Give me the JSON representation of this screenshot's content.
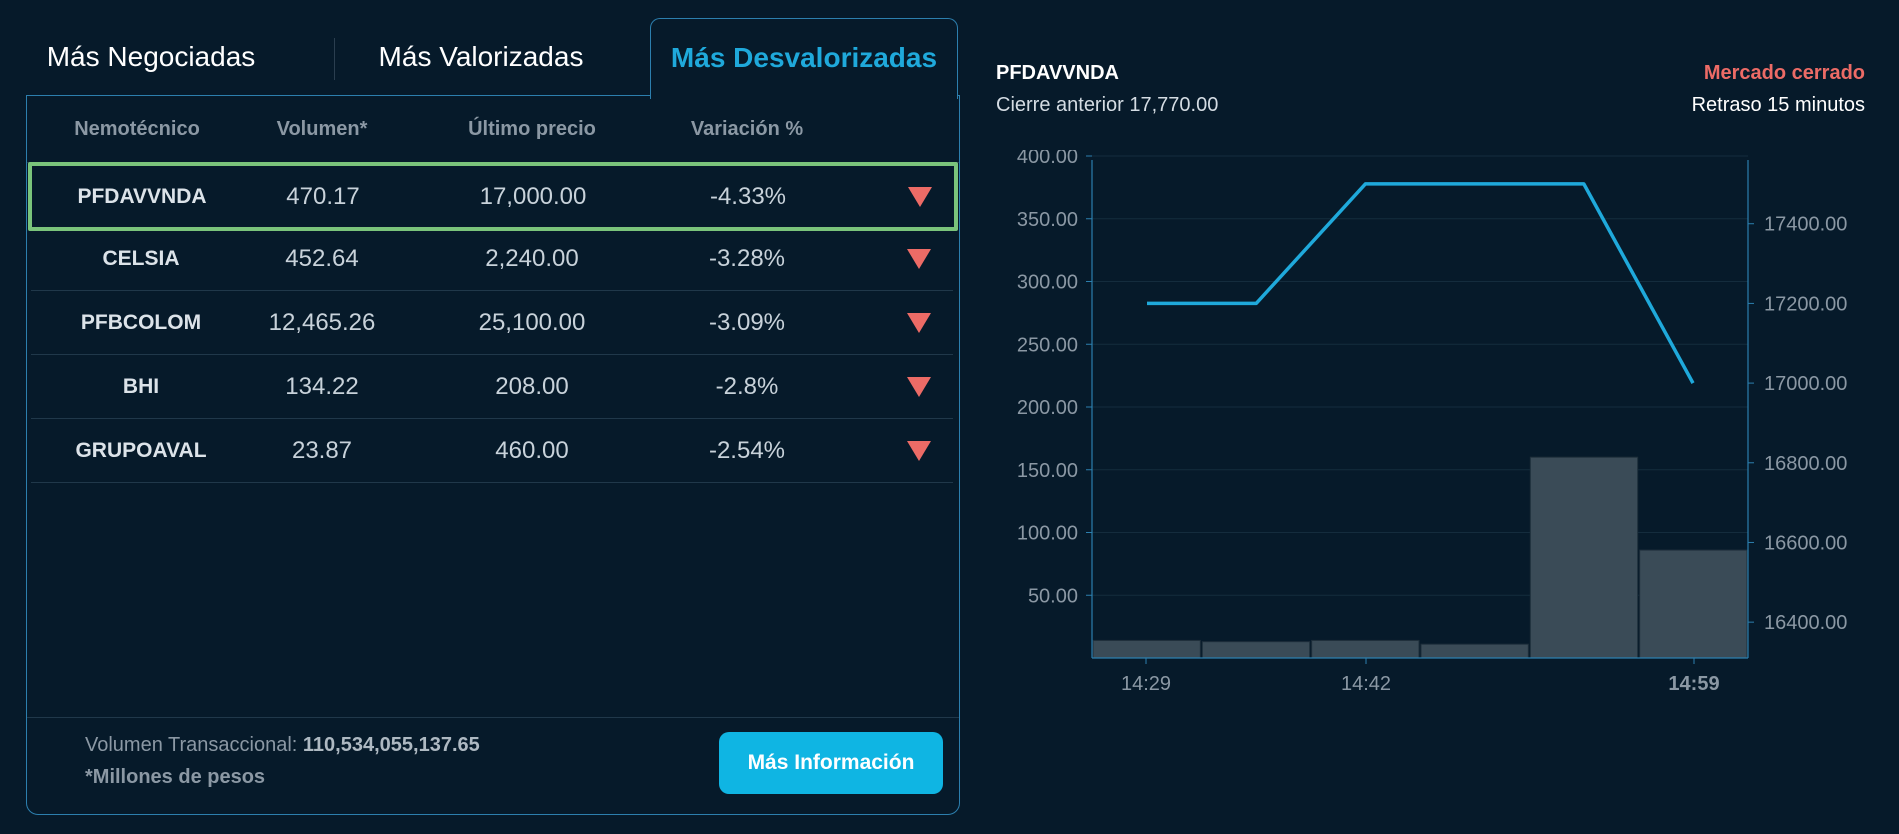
{
  "tabs": [
    "Más Negociadas",
    "Más Valorizadas",
    "Más Desvalorizadas"
  ],
  "active_tab": 2,
  "table": {
    "headers": [
      "Nemotécnico",
      "Volumen*",
      "Último precio",
      "Variación %"
    ],
    "rows": [
      {
        "nemo": "PFDAVVNDA",
        "volumen": "470.17",
        "precio": "17,000.00",
        "variacion": "-4.33%",
        "direction": "down"
      },
      {
        "nemo": "CELSIA",
        "volumen": "452.64",
        "precio": "2,240.00",
        "variacion": "-3.28%",
        "direction": "down"
      },
      {
        "nemo": "PFBCOLOM",
        "volumen": "12,465.26",
        "precio": "25,100.00",
        "variacion": "-3.09%",
        "direction": "down"
      },
      {
        "nemo": "BHI",
        "volumen": "134.22",
        "precio": "208.00",
        "variacion": "-2.8%",
        "direction": "down"
      },
      {
        "nemo": "GRUPOAVAL",
        "volumen": "23.87",
        "precio": "460.00",
        "variacion": "-2.54%",
        "direction": "down"
      }
    ]
  },
  "footer": {
    "volume_label": "Volumen Transaccional:",
    "volume_value": "110,534,055,137.65",
    "note": "*Millones de pesos",
    "button": "Más Información"
  },
  "detail": {
    "symbol": "PFDAVVNDA",
    "prev_close": "Cierre anterior 17,770.00",
    "market_status": "Mercado cerrado",
    "delay": "Retraso 15 minutos"
  },
  "colors": {
    "background": "#061a2a",
    "accent": "#1fa9db",
    "button": "#0fb5e3",
    "negative": "#ec6b66",
    "selected_border": "#7ac47b",
    "line": "#1fa9db",
    "bars": "#3a4b57"
  },
  "chart_data": {
    "type": "bar+line",
    "x_ticks": [
      "14:29",
      "14:42",
      "14:59"
    ],
    "volume_axis": {
      "ticks": [
        "50.00",
        "100.00",
        "150.00",
        "200.00",
        "250.00",
        "300.00",
        "350.00",
        "400.00"
      ],
      "ylim": [
        0,
        400
      ]
    },
    "price_axis": {
      "ticks": [
        "16400.00",
        "16600.00",
        "16800.00",
        "17000.00",
        "17200.00",
        "17400.00"
      ],
      "ylim": [
        16310,
        17570
      ]
    },
    "volume_bars": [
      14,
      13,
      14,
      11,
      160,
      86
    ],
    "price_line": [
      17200,
      17200,
      17500,
      17500,
      17500,
      17000
    ]
  }
}
